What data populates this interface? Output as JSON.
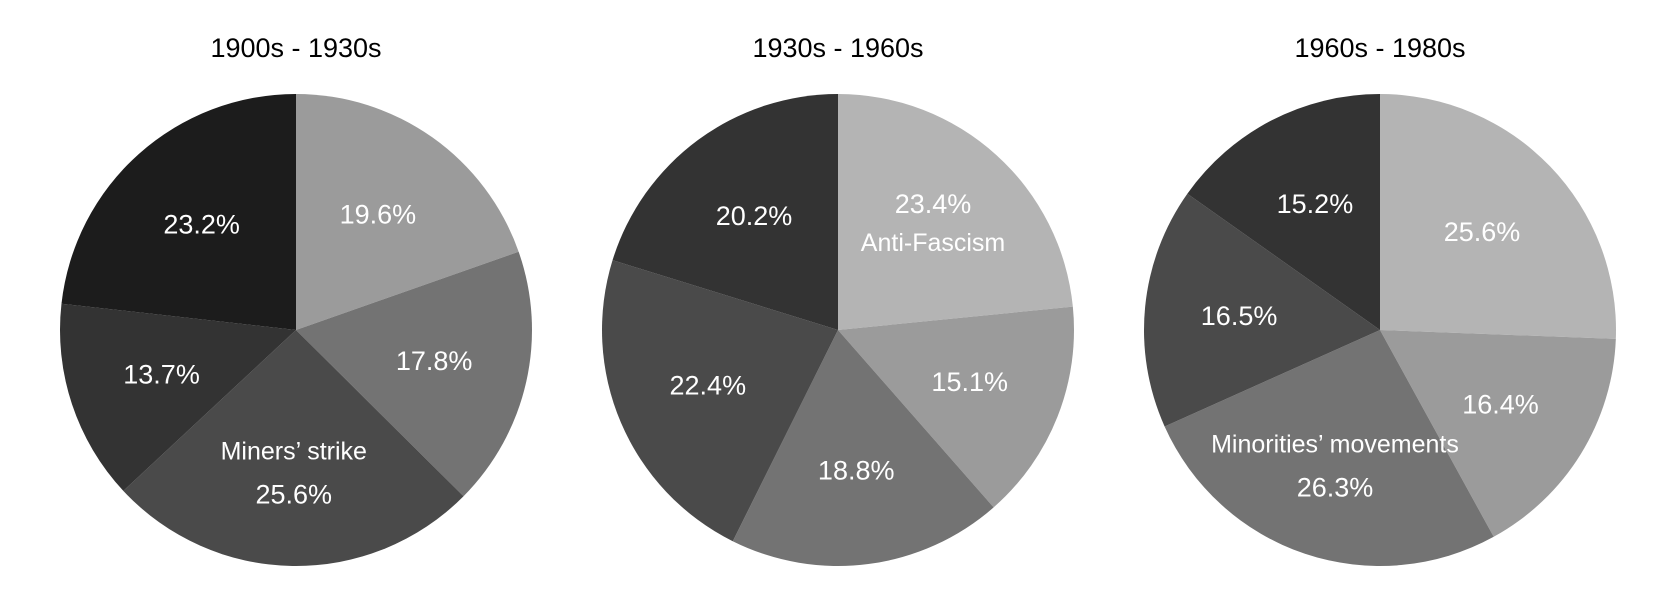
{
  "chart_data": [
    {
      "type": "pie",
      "title": "1900s - 1930s",
      "start": "12 o'clock",
      "direction": "clockwise",
      "slices": [
        {
          "value": 19.6,
          "label": "19.6%",
          "name": "",
          "color": "#9b9b9b"
        },
        {
          "value": 17.8,
          "label": "17.8%",
          "name": "",
          "color": "#737373"
        },
        {
          "value": 25.6,
          "label": "25.6%",
          "name": "Miners’ strike",
          "color": "#4a4a4a"
        },
        {
          "value": 13.7,
          "label": "13.7%",
          "name": "",
          "color": "#333333"
        },
        {
          "value": 23.2,
          "label": "23.2%",
          "name": "",
          "color": "#1c1c1c"
        }
      ]
    },
    {
      "type": "pie",
      "title": "1930s - 1960s",
      "start": "12 o'clock",
      "direction": "clockwise",
      "slices": [
        {
          "value": 23.4,
          "label": "23.4%",
          "name": "Anti-Fascism",
          "color": "#b4b4b4"
        },
        {
          "value": 15.1,
          "label": "15.1%",
          "name": "",
          "color": "#9b9b9b"
        },
        {
          "value": 18.8,
          "label": "18.8%",
          "name": "",
          "color": "#737373"
        },
        {
          "value": 22.4,
          "label": "22.4%",
          "name": "",
          "color": "#4a4a4a"
        },
        {
          "value": 20.2,
          "label": "20.2%",
          "name": "",
          "color": "#333333"
        }
      ]
    },
    {
      "type": "pie",
      "title": "1960s - 1980s",
      "start": "12 o'clock",
      "direction": "clockwise",
      "slices": [
        {
          "value": 25.6,
          "label": "25.6%",
          "name": "",
          "color": "#b4b4b4"
        },
        {
          "value": 16.4,
          "label": "16.4%",
          "name": "",
          "color": "#9b9b9b"
        },
        {
          "value": 26.3,
          "label": "26.3%",
          "name": "Minorities’ movements",
          "color": "#737373"
        },
        {
          "value": 16.5,
          "label": "16.5%",
          "name": "",
          "color": "#4a4a4a"
        },
        {
          "value": 15.2,
          "label": "15.2%",
          "name": "",
          "color": "#333333"
        }
      ]
    }
  ]
}
